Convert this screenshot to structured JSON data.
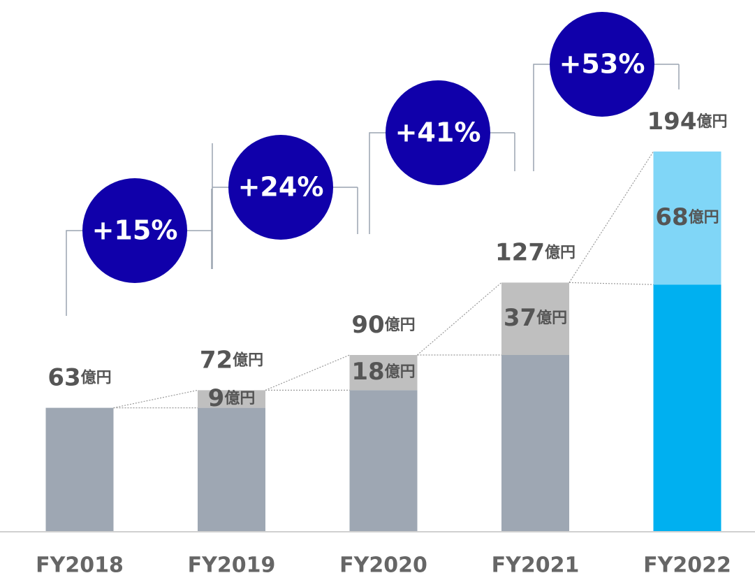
{
  "chart_data": {
    "type": "stacked_bar",
    "categories": [
      "FY2018",
      "FY2019",
      "FY2020",
      "FY2021",
      "FY2022"
    ],
    "series": [
      {
        "values": [
          63,
          63,
          72,
          90,
          126
        ],
        "colors": [
          "#9ea7b3",
          "#9ea7b3",
          "#9ea7b3",
          "#9ea7b3",
          "#00b0f0"
        ]
      },
      {
        "values": [
          null,
          9,
          18,
          37,
          68
        ],
        "colors": [
          "#bfbfbf",
          "#bfbfbf",
          "#bfbfbf",
          "#bfbfbf",
          "#80d6f7"
        ]
      }
    ],
    "totals": [
      63,
      72,
      90,
      127,
      194
    ],
    "unit": "億円",
    "growth": [
      15,
      24,
      41,
      53
    ],
    "growth_labels": [
      "+15%",
      "+24%",
      "+41%",
      "+53%"
    ],
    "growth_color": "#1000aa",
    "ylim": [
      0,
      270
    ]
  }
}
